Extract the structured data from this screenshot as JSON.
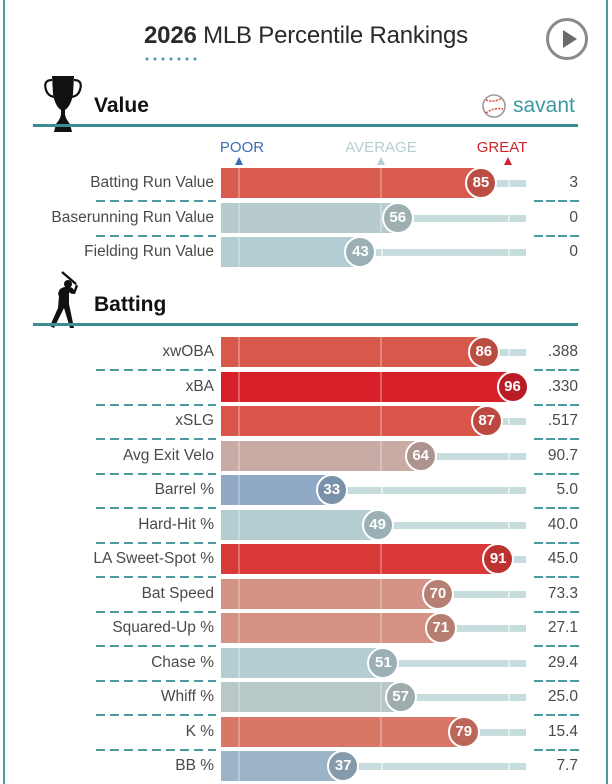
{
  "header": {
    "year": "2026",
    "title": "MLB Percentile Rankings",
    "play_icon": "play-circle-icon"
  },
  "brand": {
    "name": "savant",
    "icon": "baseball-icon"
  },
  "scale": {
    "poor": "POOR",
    "average": "AVERAGE",
    "great": "GREAT",
    "colors": {
      "poor": "#3b6db0",
      "average": "#b3cfd2",
      "great": "#d0232b"
    }
  },
  "sections": [
    {
      "title": "Value",
      "icon": "trophy-icon"
    },
    {
      "title": "Batting",
      "icon": "batter-icon"
    }
  ],
  "chart_data": {
    "type": "bar",
    "title": "2026 MLB Percentile Rankings",
    "xlim": [
      0,
      100
    ],
    "x_axis_markers": [
      "POOR",
      "AVERAGE",
      "GREAT"
    ],
    "sections": [
      {
        "name": "Value",
        "metrics": [
          {
            "label": "Batting Run Value",
            "percentile": 85,
            "value": "3",
            "color": "#d95a4e"
          },
          {
            "label": "Baserunning Run Value",
            "percentile": 56,
            "value": "0",
            "color": "#b7cbcd"
          },
          {
            "label": "Fielding Run Value",
            "percentile": 43,
            "value": "0",
            "color": "#b3cdd3"
          }
        ]
      },
      {
        "name": "Batting",
        "metrics": [
          {
            "label": "xwOBA",
            "percentile": 86,
            "value": ".388",
            "color": "#d9584c"
          },
          {
            "label": "xBA",
            "percentile": 96,
            "value": ".330",
            "color": "#d7202a"
          },
          {
            "label": "xSLG",
            "percentile": 87,
            "value": ".517",
            "color": "#d9554a"
          },
          {
            "label": "Avg Exit Velo",
            "percentile": 64,
            "value": "90.7",
            "color": "#c8aba5"
          },
          {
            "label": "Barrel %",
            "percentile": 33,
            "value": "5.0",
            "color": "#8fa9c6"
          },
          {
            "label": "Hard-Hit %",
            "percentile": 49,
            "value": "40.0",
            "color": "#b3cdd1"
          },
          {
            "label": "LA Sweet-Spot %",
            "percentile": 91,
            "value": "45.0",
            "color": "#d93a37"
          },
          {
            "label": "Bat Speed",
            "percentile": 70,
            "value": "73.3",
            "color": "#d39486"
          },
          {
            "label": "Squared-Up %",
            "percentile": 71,
            "value": "27.1",
            "color": "#d39283"
          },
          {
            "label": "Chase %",
            "percentile": 51,
            "value": "29.4",
            "color": "#b4cdd2"
          },
          {
            "label": "Whiff %",
            "percentile": 57,
            "value": "25.0",
            "color": "#b8c8c8"
          },
          {
            "label": "K %",
            "percentile": 79,
            "value": "15.4",
            "color": "#d97767"
          },
          {
            "label": "BB %",
            "percentile": 37,
            "value": "7.7",
            "color": "#9bb4c8"
          }
        ]
      }
    ]
  }
}
